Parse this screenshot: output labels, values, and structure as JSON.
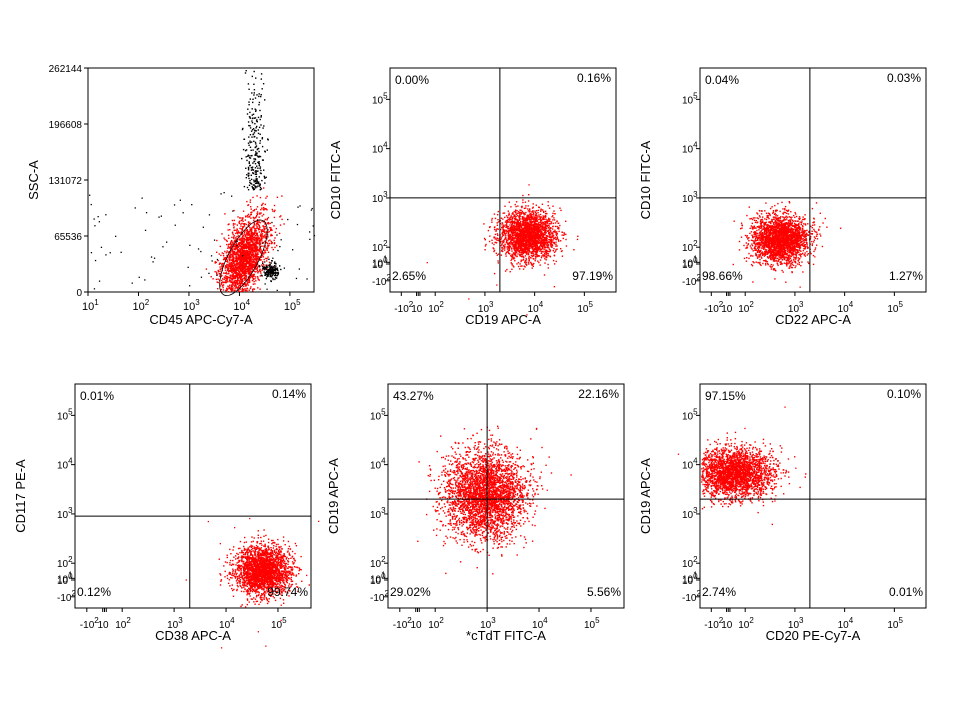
{
  "chart_data": [
    {
      "type": "scatter",
      "xlabel": "CD45 APC-Cy7-A",
      "ylabel": "SSC-A",
      "x_scale": "log",
      "y_scale": "linear",
      "xlim": [
        10,
        300000
      ],
      "ylim": [
        0,
        262144
      ],
      "x_ticks": [
        "10^1",
        "10^2",
        "10^3",
        "10^4",
        "10^5"
      ],
      "y_ticks": [
        "0",
        "65536",
        "131072",
        "196608",
        "262144"
      ],
      "gate": "red gated population around CD45 ~1.5x10^4, SSC ~30000",
      "populations": [
        {
          "name": "",
          "color": "#ff0000",
          "center_x": 12000,
          "center_y": 40000,
          "count": 2200
        },
        {
          "name": "",
          "color": "#000000",
          "center_x": 40000,
          "center_y": 26000,
          "count": 180
        },
        {
          "name": "",
          "color": "#000000",
          "center_x": 20000,
          "center_y": 120000,
          "count": 260
        }
      ],
      "quadrants": []
    },
    {
      "type": "scatter",
      "xlabel": "CD19 APC-A",
      "ylabel": "CD10 FITC-A",
      "x_scale": "biexponential",
      "y_scale": "biexponential",
      "x_ticks": [
        "-10^2",
        "-10",
        "0",
        "10",
        "10^2",
        "10^3",
        "10^4",
        "10^5"
      ],
      "y_ticks": [
        "-10^2",
        "0",
        "10^1",
        "10^2",
        "10^3",
        "10^4",
        "10^5"
      ],
      "quadrant_x": 2000,
      "quadrant_y": 1000,
      "quadrants": [
        "0.00%",
        "0.16%",
        "2.65%",
        "97.19%"
      ],
      "populations": [
        {
          "name": "",
          "color": "#ff0000",
          "center_x": 7000,
          "center_y": 180,
          "count": 2400
        }
      ]
    },
    {
      "type": "scatter",
      "xlabel": "CD22 APC-A",
      "ylabel": "CD10 FITC-A",
      "x_scale": "biexponential",
      "y_scale": "biexponential",
      "x_ticks": [
        "-10^2",
        "-10",
        "0",
        "10",
        "10^2",
        "10^3",
        "10^4",
        "10^5"
      ],
      "y_ticks": [
        "-10^2",
        "0",
        "10^1",
        "10^2",
        "10^3",
        "10^4",
        "10^5"
      ],
      "quadrant_x": 2000,
      "quadrant_y": 1000,
      "quadrants": [
        "0.04%",
        "0.03%",
        "98.66%",
        "1.27%"
      ],
      "populations": [
        {
          "name": "",
          "color": "#ff0000",
          "center_x": 500,
          "center_y": 150,
          "count": 2400
        }
      ]
    },
    {
      "type": "scatter",
      "xlabel": "CD38 APC-A",
      "ylabel": "CD117 PE-A",
      "x_scale": "biexponential",
      "y_scale": "biexponential",
      "x_ticks": [
        "-10^2",
        "-10",
        "0",
        "10",
        "10^2",
        "10^3",
        "10^4",
        "10^5"
      ],
      "y_ticks": [
        "-10^2",
        "0",
        "10^1",
        "10^3",
        "10^4",
        "10^5"
      ],
      "quadrant_x": 2000,
      "quadrant_y": 900,
      "quadrants": [
        "0.01%",
        "0.14%",
        "0.12%",
        "99.74%"
      ],
      "populations": [
        {
          "name": "",
          "color": "#ff0000",
          "center_x": 50000,
          "center_y": 60,
          "count": 2400
        }
      ]
    },
    {
      "type": "scatter",
      "xlabel": "*cTdT FITC-A",
      "ylabel": "CD19 APC-A",
      "x_scale": "biexponential",
      "y_scale": "biexponential",
      "x_ticks": [
        "-10^2",
        "-10",
        "0",
        "10",
        "10^2",
        "10^3",
        "10^4",
        "10^5"
      ],
      "y_ticks": [
        "-10^2",
        "0",
        "10^1",
        "10^2",
        "10^3",
        "10^4",
        "10^5"
      ],
      "quadrant_x": 1000,
      "quadrant_y": 2000,
      "quadrants": [
        "43.27%",
        "22.16%",
        "29.02%",
        "5.56%"
      ],
      "populations": [
        {
          "name": "",
          "color": "#ff0000",
          "center_x": 900,
          "center_y": 2500,
          "count": 3200
        }
      ]
    },
    {
      "type": "scatter",
      "xlabel": "CD20 PE-Cy7-A",
      "ylabel": "CD19 APC-A",
      "x_scale": "biexponential",
      "y_scale": "biexponential",
      "x_ticks": [
        "-10^2",
        "-10",
        "0",
        "10",
        "10^2",
        "10^3",
        "10^4",
        "10^5"
      ],
      "y_ticks": [
        "-10^2",
        "0",
        "10^1",
        "10^2",
        "10^3",
        "10^4",
        "10^5"
      ],
      "quadrant_x": 2000,
      "quadrant_y": 2000,
      "quadrants": [
        "97.15%",
        "0.10%",
        "2.74%",
        "0.01%"
      ],
      "populations": [
        {
          "name": "",
          "color": "#ff0000",
          "center_x": 30,
          "center_y": 7000,
          "count": 2600
        }
      ]
    }
  ]
}
